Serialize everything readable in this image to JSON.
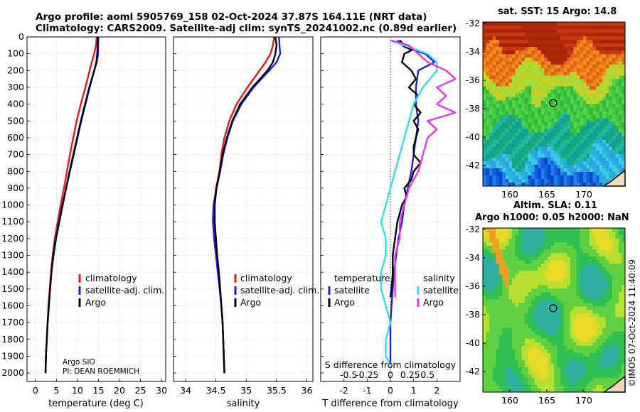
{
  "header": {
    "line1": "Argo profile: aoml 5905769_158 02-Oct-2024 37.87S 164.11E (NRT data)",
    "line2": "Climatology: CARS2009. Satellite-adj clim: synTS_20241002.nc (0.89d earlier)"
  },
  "credits": {
    "program": "Argo SIO",
    "pi": "PI: DEAN ROEMMICH"
  },
  "footer": {
    "stamp": "©IMOS 07-Oct-2024 11:40:09"
  },
  "colors": {
    "climatology": "#e8171b",
    "satellite": "#1e1ee0",
    "argo": "#000000",
    "sat_salinity": "#33e0e8",
    "argo_salinity": "#e03ae8"
  },
  "maps": {
    "sst": {
      "title": "sat. SST: 15 Argo: 14.8",
      "x_ticks": [
        "160",
        "165",
        "170"
      ],
      "y_ticks": [
        "-32",
        "-34",
        "-36",
        "-38",
        "-40",
        "-42"
      ]
    },
    "sla": {
      "title1": "Altim. SLA: 0.11",
      "title2": "Argo h1000: 0.05 h2000: NaN",
      "x_ticks": [
        "160",
        "165",
        "170"
      ],
      "y_ticks": [
        "-32",
        "-34",
        "-36",
        "-38",
        "-40",
        "-42"
      ]
    }
  },
  "chart_data": [
    {
      "type": "line",
      "name": "temperature-profile",
      "xlabel": "temperature (deg C)",
      "xlim": [
        -2,
        31
      ],
      "ylim": [
        2050,
        0
      ],
      "x_ticks": [
        0,
        5,
        10,
        15,
        20,
        25,
        30
      ],
      "y_ticks": [
        0,
        100,
        200,
        300,
        400,
        500,
        600,
        700,
        800,
        900,
        1000,
        1100,
        1200,
        1300,
        1400,
        1500,
        1600,
        1700,
        1800,
        1900,
        2000
      ],
      "legend": [
        "climatology",
        "satellite-adj. clim.",
        "Argo"
      ],
      "series": [
        {
          "name": "climatology",
          "color": "#e8171b",
          "depth": [
            0,
            50,
            100,
            150,
            200,
            300,
            400,
            500,
            600,
            700,
            800,
            900,
            1000,
            1100,
            1200,
            1300,
            1400,
            1500,
            1600,
            1700,
            1800,
            1900,
            2000
          ],
          "values": [
            14.6,
            14.4,
            14.0,
            13.4,
            12.9,
            11.9,
            10.8,
            9.8,
            9.0,
            8.2,
            7.5,
            6.8,
            6.0,
            5.3,
            4.6,
            4.1,
            3.7,
            3.4,
            3.1,
            2.9,
            2.7,
            2.5,
            2.4
          ]
        },
        {
          "name": "satellite-adj. clim.",
          "color": "#1e1ee0",
          "depth": [
            0,
            50,
            100,
            150,
            200,
            300,
            400,
            500,
            600,
            700,
            800,
            900,
            1000,
            1100,
            1200,
            1300,
            1400,
            1500,
            1600,
            1700,
            1800,
            1900,
            2000
          ],
          "values": [
            15.0,
            14.9,
            14.9,
            14.6,
            14.0,
            12.8,
            11.8,
            10.8,
            9.9,
            9.0,
            8.1,
            7.3,
            6.4,
            5.6,
            4.8,
            4.2,
            3.8,
            3.5,
            3.2,
            2.9,
            2.7,
            2.5,
            2.4
          ]
        },
        {
          "name": "Argo",
          "color": "#000000",
          "depth": [
            0,
            50,
            100,
            150,
            200,
            300,
            400,
            500,
            600,
            700,
            800,
            900,
            1000,
            1100,
            1200,
            1300,
            1400,
            1500,
            1600,
            1700,
            1800,
            1900,
            2000
          ],
          "values": [
            14.8,
            14.8,
            14.7,
            14.5,
            14.0,
            12.9,
            11.9,
            10.9,
            10.0,
            9.1,
            8.2,
            7.3,
            6.5,
            5.7,
            4.9,
            4.3,
            3.8,
            3.5,
            3.2,
            2.9,
            2.7,
            2.5,
            2.4
          ]
        }
      ]
    },
    {
      "type": "line",
      "name": "salinity-profile",
      "xlabel": "salinity",
      "xlim": [
        33.8,
        36.1
      ],
      "ylim": [
        2050,
        0
      ],
      "x_ticks": [
        34,
        34.5,
        35,
        35.5,
        36
      ],
      "legend": [
        "climatology",
        "satellite-adj. clim.",
        "Argo"
      ],
      "series": [
        {
          "name": "climatology",
          "color": "#e8171b",
          "depth": [
            0,
            50,
            100,
            150,
            200,
            300,
            400,
            500,
            600,
            700,
            800,
            900,
            1000,
            1100,
            1200,
            1300,
            1400,
            1500,
            1600,
            1700,
            1800,
            1900,
            2000
          ],
          "values": [
            35.46,
            35.44,
            35.4,
            35.32,
            35.22,
            35.02,
            34.84,
            34.72,
            34.64,
            34.59,
            34.56,
            34.5,
            34.47,
            34.46,
            34.48,
            34.51,
            34.54,
            34.57,
            34.59,
            34.61,
            34.62,
            34.63,
            34.64
          ]
        },
        {
          "name": "satellite-adj. clim.",
          "color": "#1e1ee0",
          "depth": [
            0,
            50,
            100,
            150,
            200,
            300,
            400,
            500,
            600,
            700,
            800,
            900,
            1000,
            1100,
            1200,
            1300,
            1400,
            1500,
            1600,
            1700,
            1800,
            1900,
            2000
          ],
          "values": [
            35.54,
            35.55,
            35.56,
            35.5,
            35.38,
            35.12,
            34.92,
            34.78,
            34.69,
            34.62,
            34.57,
            34.51,
            34.46,
            34.45,
            34.47,
            34.5,
            34.53,
            34.56,
            34.59,
            34.61,
            34.62,
            34.63,
            34.64
          ]
        },
        {
          "name": "Argo",
          "color": "#000000",
          "depth": [
            0,
            50,
            100,
            150,
            200,
            300,
            400,
            500,
            600,
            700,
            800,
            900,
            1000,
            1100,
            1200,
            1300,
            1400,
            1500,
            1600,
            1700,
            1800,
            1900,
            2000
          ],
          "values": [
            35.48,
            35.5,
            35.48,
            35.44,
            35.35,
            35.1,
            34.9,
            34.77,
            34.68,
            34.61,
            34.56,
            34.51,
            34.48,
            34.48,
            34.5,
            34.52,
            34.55,
            34.57,
            34.59,
            34.61,
            34.62,
            34.63,
            34.64
          ]
        }
      ]
    },
    {
      "type": "line",
      "name": "difference-profile",
      "xlabel": "T difference from climatology",
      "xlabel_top": "S difference from climatology",
      "xlim": [
        -3,
        3
      ],
      "ylim": [
        2050,
        0
      ],
      "x_ticks": [
        -2,
        -1,
        0,
        1,
        2
      ],
      "x_ticks_salinity": [
        "-0.5",
        "-0.25",
        "0",
        "0.25",
        "0.5"
      ],
      "legend_temperature_title": "temperature",
      "legend_salinity_title": "salinity",
      "legend_labels": [
        "satellite",
        "Argo"
      ],
      "series": [
        {
          "name": "temperature satellite",
          "color": "#1e1ee0",
          "depth": [
            20,
            60,
            100,
            150,
            200,
            300,
            400,
            500,
            600,
            700,
            800,
            900,
            1000,
            1100,
            1200,
            1300,
            1400,
            1500,
            1600,
            1700,
            1800,
            1900,
            1950
          ],
          "values": [
            0.3,
            0.6,
            1.5,
            1.9,
            1.2,
            1.1,
            1.1,
            1.2,
            1.1,
            1.0,
            0.9,
            0.75,
            0.6,
            0.5,
            0.35,
            0.25,
            0.15,
            0.1,
            0.05,
            0.0,
            0.0,
            0.0,
            0.0
          ]
        },
        {
          "name": "temperature Argo",
          "color": "#000000",
          "depth": [
            20,
            50,
            80,
            100,
            150,
            200,
            250,
            300,
            350,
            400,
            450,
            500,
            550,
            600,
            650,
            700,
            750,
            800,
            850,
            900,
            950,
            1000,
            1050,
            1100,
            1200,
            1300,
            1400,
            1500,
            1550
          ],
          "values": [
            0.4,
            0.6,
            0.9,
            0.6,
            0.5,
            0.9,
            1.1,
            0.8,
            1.2,
            1.0,
            1.3,
            1.0,
            1.2,
            1.1,
            1.0,
            1.0,
            1.3,
            1.0,
            0.9,
            0.6,
            0.7,
            0.5,
            0.4,
            0.3,
            0.2,
            0.1,
            0.1,
            0.05,
            0.0
          ]
        },
        {
          "name": "salinity satellite",
          "color": "#33e0e8",
          "depth": [
            20,
            60,
            100,
            150,
            200,
            300,
            400,
            500,
            600,
            700,
            800,
            900,
            1000,
            1100,
            1200,
            1300,
            1400,
            1500,
            1600,
            1700,
            1800,
            1900,
            1950
          ],
          "values": [
            0.0,
            0.2,
            0.4,
            0.5,
            0.5,
            0.35,
            0.25,
            0.2,
            0.15,
            0.1,
            0.05,
            0.0,
            -0.05,
            -0.1,
            -0.05,
            -0.05,
            -0.1,
            -0.1,
            -0.05,
            0.0,
            -0.05,
            -0.05,
            0.0
          ]
        },
        {
          "name": "salinity Argo",
          "color": "#e03ae8",
          "depth": [
            20,
            50,
            100,
            150,
            200,
            250,
            300,
            350,
            400,
            450,
            500,
            550,
            600,
            700,
            800,
            900,
            1000,
            1100,
            1200,
            1300,
            1400,
            1500,
            1550
          ],
          "values": [
            0.0,
            0.2,
            0.3,
            0.4,
            0.6,
            0.7,
            0.5,
            0.6,
            0.5,
            0.7,
            0.4,
            0.5,
            0.4,
            0.35,
            0.3,
            0.2,
            0.15,
            0.1,
            0.1,
            0.05,
            0.05,
            0.05,
            0.05
          ]
        }
      ]
    }
  ]
}
